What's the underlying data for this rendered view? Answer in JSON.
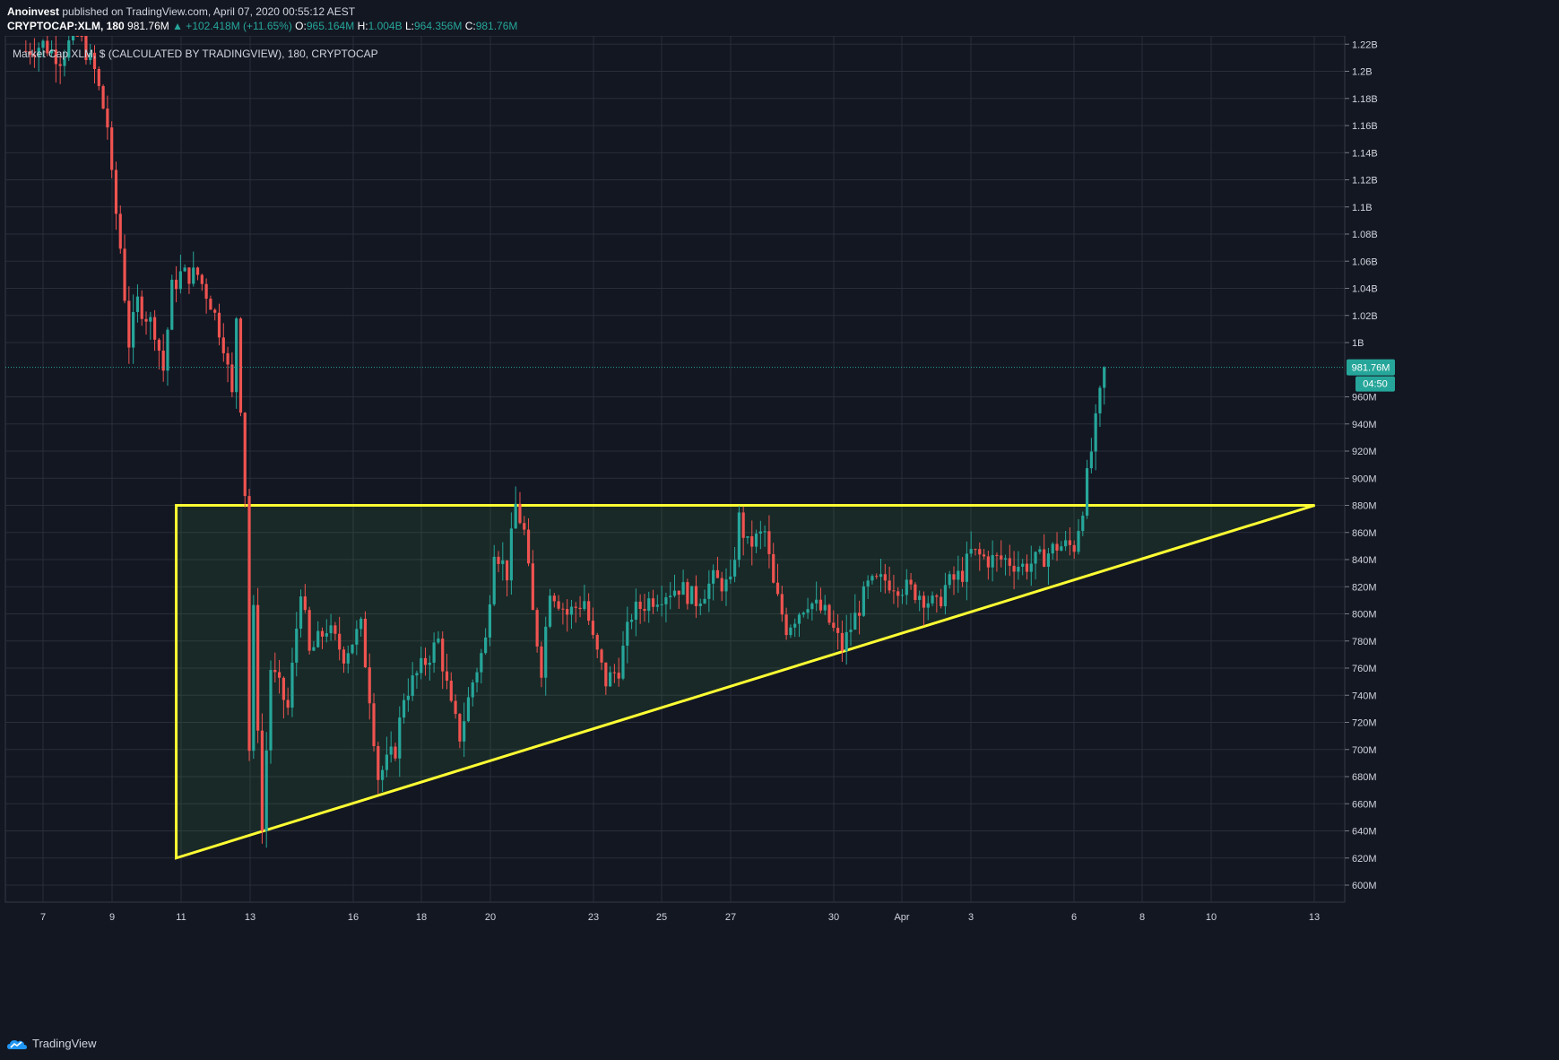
{
  "header": {
    "author": "Anoinvest",
    "published_text": "published on TradingView.com, April 07, 2020 00:55:12 AEST",
    "symbol": "CRYPTOCAP:XLM, 180",
    "last_price": "981.76M",
    "change": "▲ +102.418M (+11.65%)",
    "open_label": "O:",
    "open": "965.164M",
    "high_label": "H:",
    "high": "1.004B",
    "low_label": "L:",
    "low": "964.356M",
    "close_label": "C:",
    "close": "981.76M"
  },
  "legend": {
    "series_title": "Market Cap XLM, $ (CALCULATED BY TRADINGVIEW), 180, CRYPTOCAP"
  },
  "price_axis": {
    "ticks": [
      "1.22B",
      "1.2B",
      "1.18B",
      "1.16B",
      "1.14B",
      "1.12B",
      "1.1B",
      "1.08B",
      "1.06B",
      "1.04B",
      "1.02B",
      "1B",
      "960M",
      "940M",
      "920M",
      "900M",
      "880M",
      "860M",
      "840M",
      "820M",
      "800M",
      "780M",
      "760M",
      "740M",
      "720M",
      "700M",
      "680M",
      "660M",
      "640M",
      "620M",
      "600M"
    ],
    "current_price_label": "981.76M",
    "countdown_label": "04:50"
  },
  "time_axis": {
    "ticks": [
      "7",
      "9",
      "11",
      "13",
      "16",
      "18",
      "20",
      "23",
      "25",
      "27",
      "30",
      "Apr",
      "3",
      "6",
      "8",
      "10",
      "13"
    ]
  },
  "colors": {
    "background": "#131722",
    "grid": "#2a2e39",
    "up_candle": "#26a69a",
    "down_candle": "#ef5350",
    "pattern_line": "#ffff33",
    "pattern_fill": "rgba(76,175,80,0.12)",
    "price_badge": "#26a69a"
  },
  "chart_data": {
    "type": "candlestick",
    "title": "Market Cap XLM, $ (CALCULATED BY TRADINGVIEW), 180, CRYPTOCAP",
    "y_unit": "USD",
    "ylim": [
      590000000,
      1230000000
    ],
    "x_range": [
      "2020-03-06",
      "2020-04-13"
    ],
    "timeframe_hours": 3,
    "grid": true,
    "last_close": 981760000,
    "annotation": {
      "type": "ascending-triangle",
      "resistance": 880000000,
      "points": [
        {
          "date": "2020-03-10T21:00",
          "value": 620000000
        },
        {
          "date": "2020-03-10T21:00",
          "value": 880000000
        },
        {
          "date": "2020-04-13T00:00",
          "value": 880000000
        }
      ]
    },
    "close_path": [
      [
        "2020-03-06T12:00",
        1215000000
      ],
      [
        "2020-03-07T00:00",
        1220000000
      ],
      [
        "2020-03-07T12:00",
        1210000000
      ],
      [
        "2020-03-08T00:00",
        1230000000
      ],
      [
        "2020-03-08T12:00",
        1200000000
      ],
      [
        "2020-03-08T21:00",
        1160000000
      ],
      [
        "2020-03-09T00:00",
        1120000000
      ],
      [
        "2020-03-09T06:00",
        1070000000
      ],
      [
        "2020-03-09T12:00",
        1000000000
      ],
      [
        "2020-03-09T18:00",
        1030000000
      ],
      [
        "2020-03-10T06:00",
        1010000000
      ],
      [
        "2020-03-10T12:00",
        980000000
      ],
      [
        "2020-03-10T18:00",
        1040000000
      ],
      [
        "2020-03-11T00:00",
        1050000000
      ],
      [
        "2020-03-11T12:00",
        1050000000
      ],
      [
        "2020-03-11T21:00",
        1030000000
      ],
      [
        "2020-03-12T06:00",
        1000000000
      ],
      [
        "2020-03-12T12:00",
        960000000
      ],
      [
        "2020-03-12T15:00",
        1020000000
      ],
      [
        "2020-03-12T21:00",
        890000000
      ],
      [
        "2020-03-13T00:00",
        700000000
      ],
      [
        "2020-03-13T03:00",
        800000000
      ],
      [
        "2020-03-13T09:00",
        640000000
      ],
      [
        "2020-03-13T15:00",
        760000000
      ],
      [
        "2020-03-14T03:00",
        730000000
      ],
      [
        "2020-03-14T12:00",
        820000000
      ],
      [
        "2020-03-14T18:00",
        770000000
      ],
      [
        "2020-03-15T06:00",
        790000000
      ],
      [
        "2020-03-15T18:00",
        770000000
      ],
      [
        "2020-03-16T06:00",
        790000000
      ],
      [
        "2020-03-16T12:00",
        740000000
      ],
      [
        "2020-03-16T18:00",
        680000000
      ],
      [
        "2020-03-17T06:00",
        700000000
      ],
      [
        "2020-03-17T12:00",
        740000000
      ],
      [
        "2020-03-18T00:00",
        760000000
      ],
      [
        "2020-03-18T12:00",
        780000000
      ],
      [
        "2020-03-18T21:00",
        730000000
      ],
      [
        "2020-03-19T03:00",
        710000000
      ],
      [
        "2020-03-19T12:00",
        750000000
      ],
      [
        "2020-03-19T21:00",
        780000000
      ],
      [
        "2020-03-20T03:00",
        850000000
      ],
      [
        "2020-03-20T12:00",
        830000000
      ],
      [
        "2020-03-20T18:00",
        880000000
      ],
      [
        "2020-03-21T00:00",
        860000000
      ],
      [
        "2020-03-21T06:00",
        800000000
      ],
      [
        "2020-03-21T12:00",
        760000000
      ],
      [
        "2020-03-21T18:00",
        820000000
      ],
      [
        "2020-03-22T06:00",
        800000000
      ],
      [
        "2020-03-22T18:00",
        810000000
      ],
      [
        "2020-03-23T00:00",
        780000000
      ],
      [
        "2020-03-23T09:00",
        750000000
      ],
      [
        "2020-03-23T18:00",
        760000000
      ],
      [
        "2020-03-24T03:00",
        800000000
      ],
      [
        "2020-03-24T15:00",
        810000000
      ],
      [
        "2020-03-25T00:00",
        815000000
      ],
      [
        "2020-03-25T12:00",
        820000000
      ],
      [
        "2020-03-26T00:00",
        810000000
      ],
      [
        "2020-03-26T12:00",
        825000000
      ],
      [
        "2020-03-27T00:00",
        820000000
      ],
      [
        "2020-03-27T06:00",
        870000000
      ],
      [
        "2020-03-27T12:00",
        850000000
      ],
      [
        "2020-03-28T00:00",
        860000000
      ],
      [
        "2020-03-28T06:00",
        820000000
      ],
      [
        "2020-03-28T15:00",
        790000000
      ],
      [
        "2020-03-29T06:00",
        810000000
      ],
      [
        "2020-03-29T18:00",
        800000000
      ],
      [
        "2020-03-30T06:00",
        775000000
      ],
      [
        "2020-03-30T12:00",
        790000000
      ],
      [
        "2020-03-31T00:00",
        820000000
      ],
      [
        "2020-03-31T12:00",
        825000000
      ],
      [
        "2020-04-01T00:00",
        820000000
      ],
      [
        "2020-04-01T12:00",
        815000000
      ],
      [
        "2020-04-02T00:00",
        805000000
      ],
      [
        "2020-04-02T06:00",
        820000000
      ],
      [
        "2020-04-02T18:00",
        830000000
      ],
      [
        "2020-04-03T00:00",
        845000000
      ],
      [
        "2020-04-03T12:00",
        840000000
      ],
      [
        "2020-04-04T00:00",
        840000000
      ],
      [
        "2020-04-04T12:00",
        835000000
      ],
      [
        "2020-04-05T00:00",
        840000000
      ],
      [
        "2020-04-05T12:00",
        850000000
      ],
      [
        "2020-04-06T00:00",
        850000000
      ],
      [
        "2020-04-06T06:00",
        880000000
      ],
      [
        "2020-04-06T12:00",
        920000000
      ],
      [
        "2020-04-06T18:00",
        960000000
      ],
      [
        "2020-04-06T21:00",
        981760000
      ]
    ]
  },
  "branding": {
    "logo_text": "TradingView"
  }
}
